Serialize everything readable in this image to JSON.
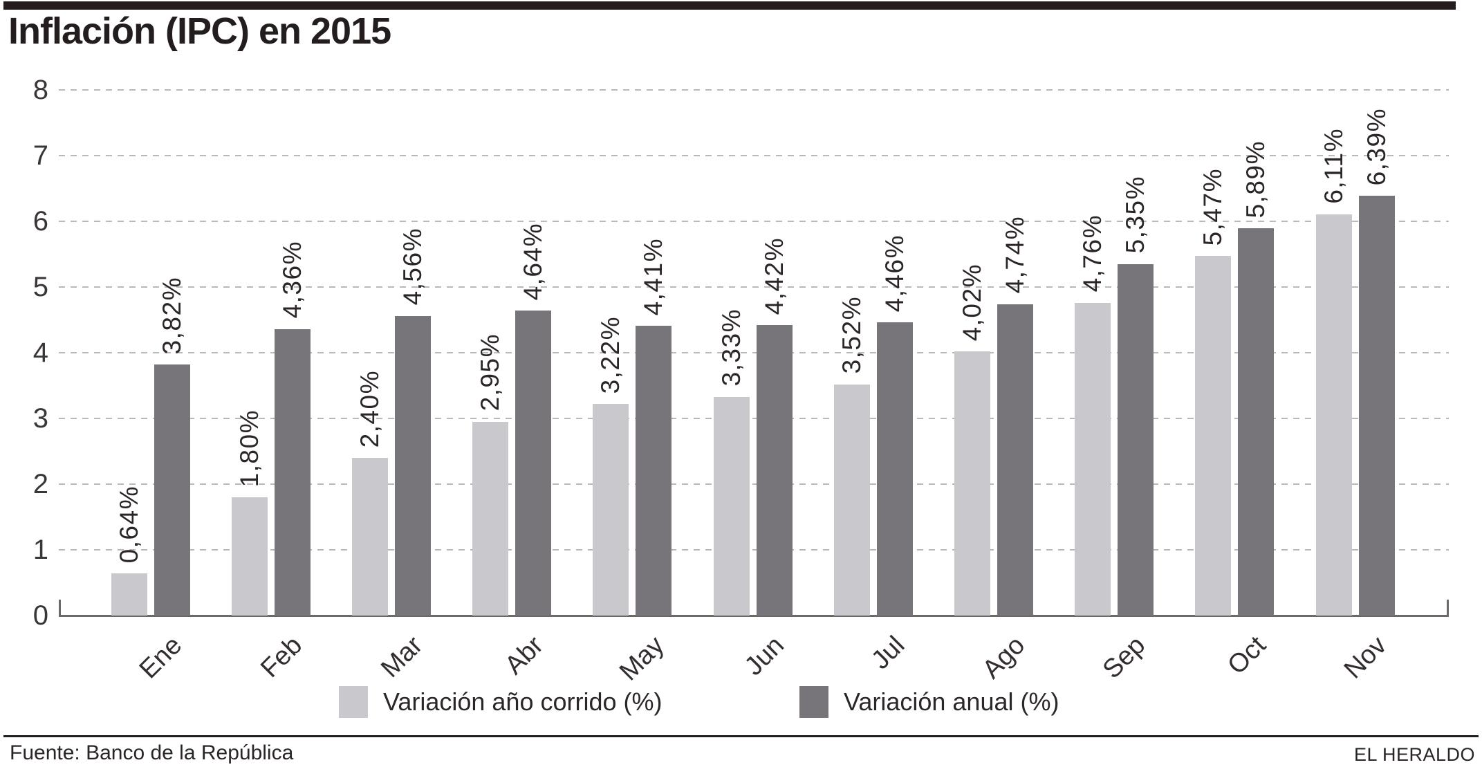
{
  "header": {
    "title": "Inflación (IPC) en 2015"
  },
  "colors": {
    "series_light": "#c9c9cd",
    "series_dark": "#77757a",
    "top_bar": "#241c1c",
    "gridline": "#b9b9b9",
    "axis": "#6e6969",
    "text": "#2b2526"
  },
  "chart_data": {
    "type": "bar",
    "title": "Inflación (IPC) en 2015",
    "categories": [
      "Ene",
      "Feb",
      "Mar",
      "Abr",
      "May",
      "Jun",
      "Jul",
      "Ago",
      "Sep",
      "Oct",
      "Nov"
    ],
    "series": [
      {
        "name": "Variación año corrido (%)",
        "color": "#c9c9cd",
        "values": [
          0.64,
          1.8,
          2.4,
          2.95,
          3.22,
          3.33,
          3.52,
          4.02,
          4.76,
          5.47,
          6.11
        ],
        "labels": [
          "0,64%",
          "1,80%",
          "2,40%",
          "2,95%",
          "3,22%",
          "3,33%",
          "3,52%",
          "4,02%",
          "4,76%",
          "5,47%",
          "6,11%"
        ]
      },
      {
        "name": "Variación anual (%)",
        "color": "#77757a",
        "values": [
          3.82,
          4.36,
          4.56,
          4.64,
          4.41,
          4.42,
          4.46,
          4.74,
          5.35,
          5.89,
          6.39
        ],
        "labels": [
          "3,82%",
          "4,36%",
          "4,56%",
          "4,64%",
          "4,41%",
          "4,42%",
          "4,46%",
          "4,74%",
          "5,35%",
          "5,89%",
          "6,39%"
        ]
      }
    ],
    "xlabel": "",
    "ylabel": "",
    "ylim": [
      0,
      8
    ],
    "yticks": [
      0,
      1,
      2,
      3,
      4,
      5,
      6,
      7,
      8
    ],
    "grid": "horizontal-dashed",
    "value_label_rotation": -90,
    "xtick_rotation": -45,
    "legend_position": "bottom"
  },
  "legend": {
    "items": [
      {
        "label": "Variación año corrido (%)",
        "color": "#c9c9cd"
      },
      {
        "label": "Variación anual (%)",
        "color": "#77757a"
      }
    ]
  },
  "footer": {
    "source": "Fuente: Banco de la República",
    "credit": "EL HERALDO"
  }
}
